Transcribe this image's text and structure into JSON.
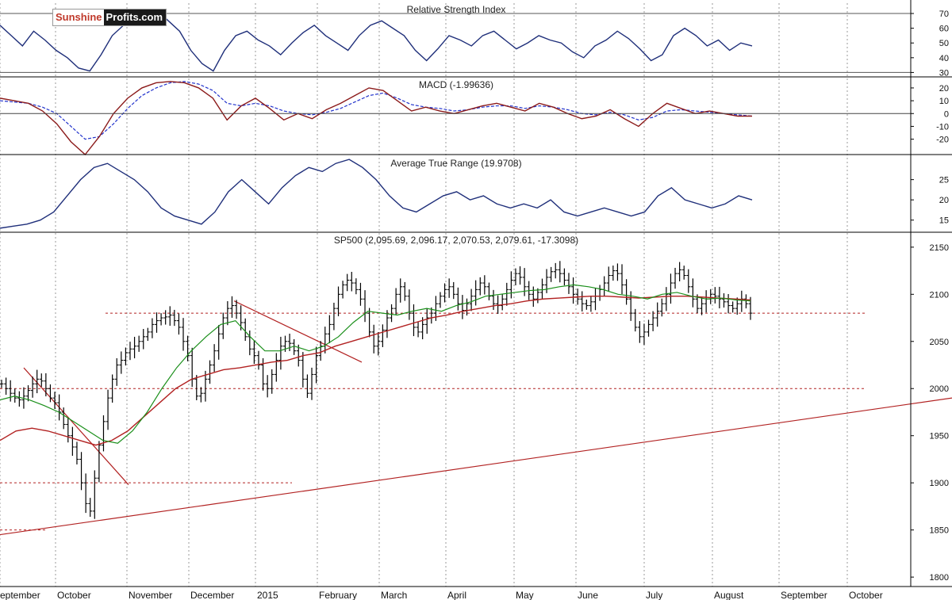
{
  "logo": {
    "part1": "Sunshine",
    "part2": "Profits.com"
  },
  "colors": {
    "rsi_line": "#1f2f7a",
    "macd_line": "#8b1a1a",
    "signal_line": "#2233cc",
    "atr_line": "#1f2f7a",
    "bars": "#000000",
    "ma_fast": "#1a8f1a",
    "ma_slow": "#b22222",
    "guides": "#b22222",
    "grid": "#9a9a9a"
  },
  "months": [
    "September",
    "October",
    "November",
    "December",
    "2015",
    "February",
    "March",
    "April",
    "May",
    "June",
    "July",
    "August",
    "September",
    "October"
  ],
  "chart_data": [
    {
      "type": "line",
      "title": "Relative Strength Index",
      "yticks": [
        30,
        40,
        50,
        60,
        70
      ],
      "ylim": [
        27,
        77
      ],
      "reference_lines": [
        30,
        70
      ],
      "series": [
        {
          "values": [
            62,
            55,
            48,
            58,
            52,
            45,
            40,
            33,
            31,
            42,
            55,
            62,
            66,
            70,
            72,
            65,
            58,
            45,
            36,
            31,
            45,
            55,
            58,
            52,
            48,
            42,
            50,
            57,
            62,
            55,
            50,
            45,
            55,
            62,
            65,
            60,
            55,
            45,
            38,
            46,
            55,
            52,
            48,
            55,
            58,
            52,
            46,
            50,
            55,
            52,
            50,
            44,
            40,
            48,
            52,
            58,
            53,
            46,
            38,
            42,
            55,
            60,
            55,
            48,
            52,
            45,
            50,
            48
          ]
        }
      ]
    },
    {
      "type": "line",
      "title": "MACD (-1.99636)",
      "yticks": [
        -20,
        -10,
        0,
        10,
        20
      ],
      "ylim": [
        -32,
        28
      ],
      "series": [
        {
          "values": [
            12,
            10,
            8,
            2,
            -8,
            -22,
            -32,
            -18,
            0,
            12,
            20,
            24,
            25,
            24,
            20,
            12,
            -5,
            6,
            12,
            4,
            -5,
            0,
            -4,
            3,
            8,
            14,
            20,
            18,
            10,
            2,
            5,
            2,
            0,
            3,
            6,
            8,
            5,
            2,
            8,
            5,
            0,
            -4,
            -2,
            3,
            -4,
            -10,
            0,
            8,
            4,
            0,
            2,
            0,
            -2,
            -2
          ]
        },
        {
          "values": [
            10,
            9,
            8,
            5,
            0,
            -10,
            -20,
            -18,
            -8,
            4,
            14,
            20,
            24,
            25,
            23,
            18,
            8,
            6,
            8,
            6,
            2,
            0,
            -1,
            1,
            4,
            9,
            14,
            16,
            12,
            7,
            5,
            4,
            2,
            3,
            5,
            6,
            6,
            4,
            6,
            5,
            3,
            0,
            -1,
            1,
            -1,
            -5,
            -3,
            2,
            3,
            2,
            1,
            0,
            -1,
            -2
          ]
        }
      ]
    },
    {
      "type": "line",
      "title": "Average True Range (19.9708)",
      "yticks": [
        15,
        20,
        25
      ],
      "ylim": [
        12,
        31
      ],
      "series": [
        {
          "values": [
            13,
            13.5,
            14,
            15,
            17,
            21,
            25,
            28,
            29,
            27,
            25,
            22,
            18,
            16,
            15,
            14,
            17,
            22,
            25,
            22,
            19,
            23,
            26,
            28,
            27,
            29,
            30,
            28,
            25,
            21,
            18,
            17,
            19,
            21,
            22,
            20,
            21,
            19,
            18,
            19,
            18,
            20,
            17,
            16,
            17,
            18,
            17,
            16,
            17,
            21,
            23,
            20,
            19,
            18,
            19,
            21,
            20
          ]
        }
      ]
    },
    {
      "type": "bar",
      "title": "SP500 (2,095.69, 2,096.17, 2,070.53, 2,079.61, -17.3098)",
      "yticks": [
        1800,
        1850,
        1900,
        1950,
        2000,
        2050,
        2100,
        2150
      ],
      "ylim": [
        1790,
        2165
      ],
      "close": [
        2005,
        2000,
        1995,
        1990,
        1988,
        1992,
        1998,
        2005,
        2010,
        2008,
        2000,
        1990,
        1985,
        1975,
        1962,
        1950,
        1938,
        1925,
        1900,
        1878,
        1870,
        1905,
        1940,
        1965,
        1990,
        2010,
        2025,
        2030,
        2038,
        2042,
        2045,
        2050,
        2055,
        2060,
        2068,
        2072,
        2075,
        2076,
        2078,
        2072,
        2065,
        2050,
        2035,
        2010,
        1992,
        1995,
        2010,
        2025,
        2040,
        2058,
        2075,
        2085,
        2088,
        2080,
        2070,
        2055,
        2042,
        2035,
        2025,
        2005,
        2000,
        2015,
        2030,
        2045,
        2050,
        2048,
        2040,
        2030,
        2010,
        1995,
        2015,
        2035,
        2045,
        2058,
        2068,
        2085,
        2100,
        2110,
        2115,
        2112,
        2105,
        2095,
        2080,
        2060,
        2045,
        2050,
        2062,
        2075,
        2085,
        2100,
        2108,
        2098,
        2080,
        2065,
        2060,
        2068,
        2075,
        2080,
        2090,
        2098,
        2105,
        2108,
        2100,
        2090,
        2083,
        2090,
        2098,
        2105,
        2112,
        2108,
        2098,
        2090,
        2088,
        2095,
        2105,
        2115,
        2122,
        2118,
        2108,
        2100,
        2095,
        2102,
        2110,
        2118,
        2124,
        2126,
        2122,
        2115,
        2108,
        2100,
        2095,
        2090,
        2088,
        2092,
        2098,
        2105,
        2112,
        2120,
        2125,
        2122,
        2110,
        2095,
        2080,
        2065,
        2055,
        2060,
        2068,
        2075,
        2082,
        2090,
        2100,
        2112,
        2122,
        2126,
        2120,
        2108,
        2095,
        2085,
        2090,
        2095,
        2100,
        2098,
        2095,
        2092,
        2088,
        2085,
        2090,
        2095,
        2090,
        2080
      ],
      "ma_fast": [
        1988,
        1992,
        1988,
        1982,
        1975,
        1965,
        1955,
        1945,
        1942,
        1955,
        1975,
        2000,
        2022,
        2040,
        2055,
        2068,
        2072,
        2055,
        2040,
        2040,
        2045,
        2040,
        2045,
        2055,
        2070,
        2082,
        2080,
        2078,
        2082,
        2085,
        2082,
        2088,
        2092,
        2098,
        2100,
        2102,
        2104,
        2105,
        2108,
        2110,
        2108,
        2105,
        2100,
        2098,
        2095,
        2100,
        2102,
        2098,
        2095,
        2096,
        2094,
        2093
      ],
      "ma_slow": [
        1945,
        1955,
        1958,
        1955,
        1950,
        1945,
        1940,
        1945,
        1955,
        1970,
        1985,
        2000,
        2010,
        2015,
        2020,
        2022,
        2025,
        2028,
        2030,
        2035,
        2038,
        2045,
        2050,
        2055,
        2060,
        2065,
        2070,
        2075,
        2078,
        2082,
        2085,
        2088,
        2090,
        2093,
        2095,
        2096,
        2097,
        2098,
        2098,
        2097,
        2096,
        2097,
        2098,
        2098,
        2097,
        2096,
        2095,
        2094
      ],
      "guides": [
        2080,
        2000,
        1900,
        1850
      ],
      "trendlines": [
        [
          1845,
          1990
        ],
        [
          2022,
          1898
        ],
        [
          2093,
          2028
        ]
      ]
    }
  ]
}
